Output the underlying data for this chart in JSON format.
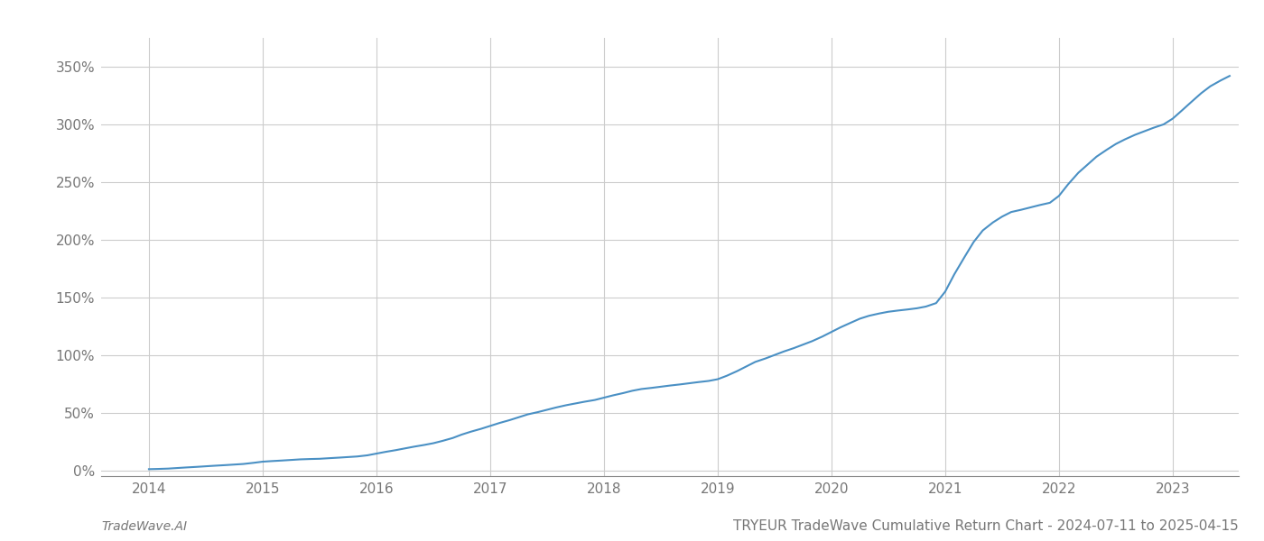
{
  "title": "TRYEUR TradeWave Cumulative Return Chart - 2024-07-11 to 2025-04-15",
  "footer_left": "TradeWave.AI",
  "line_color": "#4a90c4",
  "line_width": 1.5,
  "background_color": "#ffffff",
  "grid_color": "#cccccc",
  "x_years": [
    2014,
    2015,
    2016,
    2017,
    2018,
    2019,
    2020,
    2021,
    2022,
    2023
  ],
  "data_x": [
    2014.0,
    2014.08,
    2014.17,
    2014.25,
    2014.33,
    2014.42,
    2014.5,
    2014.58,
    2014.67,
    2014.75,
    2014.83,
    2014.92,
    2015.0,
    2015.08,
    2015.17,
    2015.25,
    2015.33,
    2015.42,
    2015.5,
    2015.58,
    2015.67,
    2015.75,
    2015.83,
    2015.92,
    2016.0,
    2016.08,
    2016.17,
    2016.25,
    2016.33,
    2016.42,
    2016.5,
    2016.58,
    2016.67,
    2016.75,
    2016.83,
    2016.92,
    2017.0,
    2017.08,
    2017.17,
    2017.25,
    2017.33,
    2017.42,
    2017.5,
    2017.58,
    2017.67,
    2017.75,
    2017.83,
    2017.92,
    2018.0,
    2018.08,
    2018.17,
    2018.25,
    2018.33,
    2018.42,
    2018.5,
    2018.58,
    2018.67,
    2018.75,
    2018.83,
    2018.92,
    2019.0,
    2019.08,
    2019.17,
    2019.25,
    2019.33,
    2019.42,
    2019.5,
    2019.58,
    2019.67,
    2019.75,
    2019.83,
    2019.92,
    2020.0,
    2020.08,
    2020.17,
    2020.25,
    2020.33,
    2020.42,
    2020.5,
    2020.58,
    2020.67,
    2020.75,
    2020.83,
    2020.92,
    2021.0,
    2021.08,
    2021.17,
    2021.25,
    2021.33,
    2021.42,
    2021.5,
    2021.58,
    2021.67,
    2021.75,
    2021.83,
    2021.92,
    2022.0,
    2022.08,
    2022.17,
    2022.25,
    2022.33,
    2022.42,
    2022.5,
    2022.58,
    2022.67,
    2022.75,
    2022.83,
    2022.92,
    2023.0,
    2023.08,
    2023.17,
    2023.25,
    2023.33,
    2023.42,
    2023.5
  ],
  "data_y": [
    1.0,
    1.2,
    1.5,
    2.0,
    2.5,
    3.0,
    3.5,
    4.0,
    4.5,
    5.0,
    5.5,
    6.5,
    7.5,
    8.0,
    8.5,
    9.0,
    9.5,
    9.8,
    10.0,
    10.5,
    11.0,
    11.5,
    12.0,
    13.0,
    14.5,
    16.0,
    17.5,
    19.0,
    20.5,
    22.0,
    23.5,
    25.5,
    28.0,
    31.0,
    33.5,
    36.0,
    38.5,
    41.0,
    43.5,
    46.0,
    48.5,
    50.5,
    52.5,
    54.5,
    56.5,
    58.0,
    59.5,
    61.0,
    63.0,
    65.0,
    67.0,
    69.0,
    70.5,
    71.5,
    72.5,
    73.5,
    74.5,
    75.5,
    76.5,
    77.5,
    79.0,
    82.0,
    86.0,
    90.0,
    94.0,
    97.0,
    100.0,
    103.0,
    106.0,
    109.0,
    112.0,
    116.0,
    120.0,
    124.0,
    128.0,
    131.5,
    134.0,
    136.0,
    137.5,
    138.5,
    139.5,
    140.5,
    142.0,
    145.0,
    155.0,
    170.0,
    185.0,
    198.0,
    208.0,
    215.0,
    220.0,
    224.0,
    226.0,
    228.0,
    230.0,
    232.0,
    238.0,
    248.0,
    258.0,
    265.0,
    272.0,
    278.0,
    283.0,
    287.0,
    291.0,
    294.0,
    297.0,
    300.0,
    305.0,
    312.0,
    320.0,
    327.0,
    333.0,
    338.0,
    342.0
  ],
  "yticks": [
    0,
    50,
    100,
    150,
    200,
    250,
    300,
    350
  ],
  "ylim": [
    -5,
    375
  ],
  "xlim": [
    2013.58,
    2023.58
  ],
  "tick_fontsize": 11,
  "footer_fontsize": 10,
  "title_fontsize": 11
}
